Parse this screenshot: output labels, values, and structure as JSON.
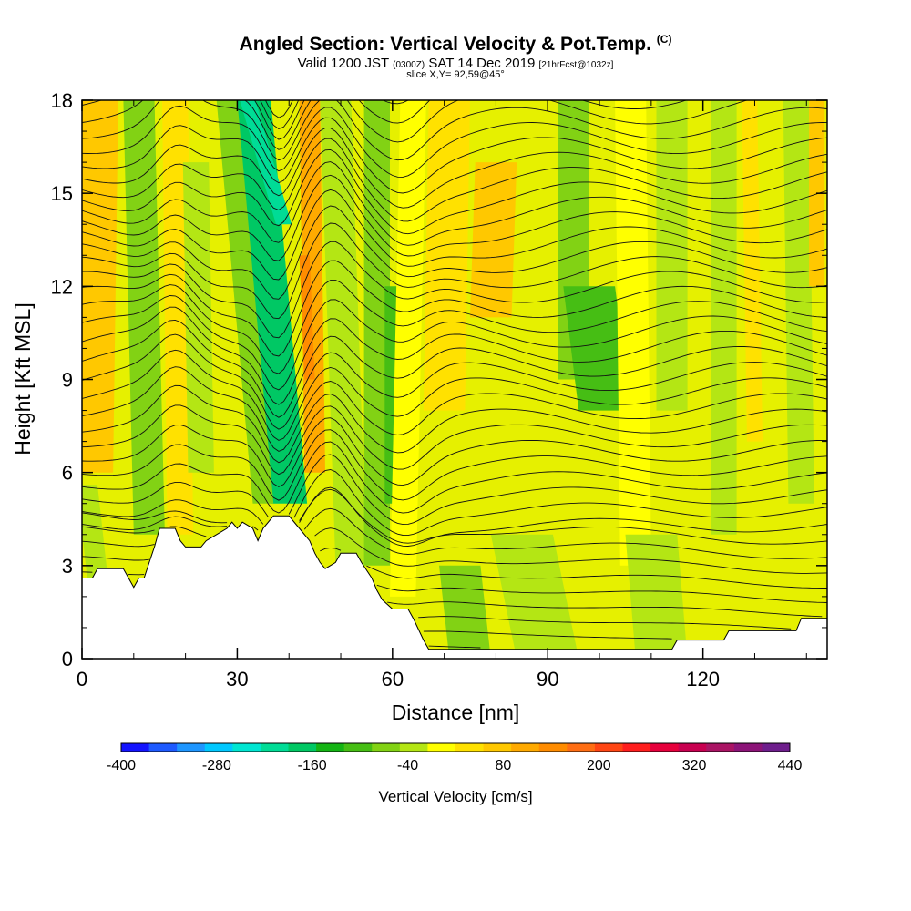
{
  "title": {
    "main": "Angled Section: Vertical Velocity & Pot.Temp.",
    "main_suffix": "(C)",
    "valid_prefix": "Valid 1200 JST",
    "valid_utc": "(0300Z)",
    "valid_date": "SAT 14 Dec 2019",
    "valid_fcst": "[21hrFcst@1032z]",
    "slice": "slice X,Y= 92,59@45°"
  },
  "chart_data": {
    "type": "heatmap",
    "title": "Angled Section: Vertical Velocity & Pot.Temp.",
    "xlabel": "Distance [nm]",
    "ylabel": "Height [Kft MSL]",
    "xlim": [
      0,
      144
    ],
    "ylim": [
      0,
      18
    ],
    "x_ticks": [
      "0",
      "30",
      "60",
      "90",
      "120"
    ],
    "y_ticks": [
      "0",
      "3",
      "6",
      "9",
      "12",
      "15",
      "18"
    ],
    "colorbar": {
      "label": "Vertical Velocity [cm/s]",
      "tick_labels": [
        "-400",
        "-280",
        "-160",
        "-40",
        "80",
        "200",
        "320",
        "440"
      ],
      "colors": [
        "#1414ff",
        "#1e5aff",
        "#1e96ff",
        "#00c8ff",
        "#00e6d2",
        "#00dc96",
        "#00c864",
        "#14b414",
        "#46be14",
        "#82d214",
        "#b4e614",
        "#ffff00",
        "#ffe100",
        "#ffc800",
        "#ffaa00",
        "#ff8c00",
        "#ff6e14",
        "#ff4614",
        "#ff1e1e",
        "#e6003c",
        "#c80050",
        "#aa1464",
        "#8c1478",
        "#6e1e8c"
      ]
    },
    "terrain_kft": [
      [
        0,
        2.6
      ],
      [
        2,
        2.6
      ],
      [
        3,
        2.9
      ],
      [
        8,
        2.9
      ],
      [
        9,
        2.6
      ],
      [
        10,
        2.3
      ],
      [
        11,
        2.6
      ],
      [
        12,
        2.6
      ],
      [
        13,
        3.1
      ],
      [
        14,
        3.6
      ],
      [
        15,
        4.2
      ],
      [
        18,
        4.2
      ],
      [
        19,
        3.8
      ],
      [
        20,
        3.6
      ],
      [
        23,
        3.6
      ],
      [
        24,
        3.8
      ],
      [
        26,
        4.0
      ],
      [
        28,
        4.2
      ],
      [
        29,
        4.4
      ],
      [
        30,
        4.2
      ],
      [
        31,
        4.4
      ],
      [
        33,
        4.2
      ],
      [
        34,
        3.8
      ],
      [
        35,
        4.2
      ],
      [
        37,
        4.6
      ],
      [
        40,
        4.6
      ],
      [
        42,
        4.2
      ],
      [
        44,
        3.8
      ],
      [
        45,
        3.4
      ],
      [
        46,
        3.1
      ],
      [
        47,
        2.9
      ],
      [
        49,
        3.1
      ],
      [
        50,
        3.4
      ],
      [
        53,
        3.4
      ],
      [
        54,
        3.1
      ],
      [
        56,
        2.6
      ],
      [
        57,
        2.2
      ],
      [
        58,
        1.9
      ],
      [
        60,
        1.6
      ],
      [
        63,
        1.6
      ],
      [
        64,
        1.3
      ],
      [
        66,
        0.6
      ],
      [
        67,
        0.3
      ],
      [
        114,
        0.3
      ],
      [
        115,
        0.6
      ],
      [
        124,
        0.6
      ],
      [
        125,
        0.9
      ],
      [
        138,
        0.9
      ],
      [
        139,
        1.3
      ],
      [
        144,
        1.3
      ]
    ],
    "theta_contours": [
      "-2",
      "0",
      "2",
      "4",
      "6",
      "8",
      "10",
      "12",
      "14",
      "16",
      "18",
      "20",
      "22",
      "24",
      "26",
      "28",
      "30",
      "32",
      "34",
      "36",
      "38",
      "40",
      "42",
      "44",
      "46",
      "48",
      "50",
      "52",
      "54",
      "56",
      "58",
      "60",
      "62",
      "64",
      "66",
      "68",
      "70",
      "72",
      "74",
      "76",
      "78",
      "80"
    ]
  }
}
